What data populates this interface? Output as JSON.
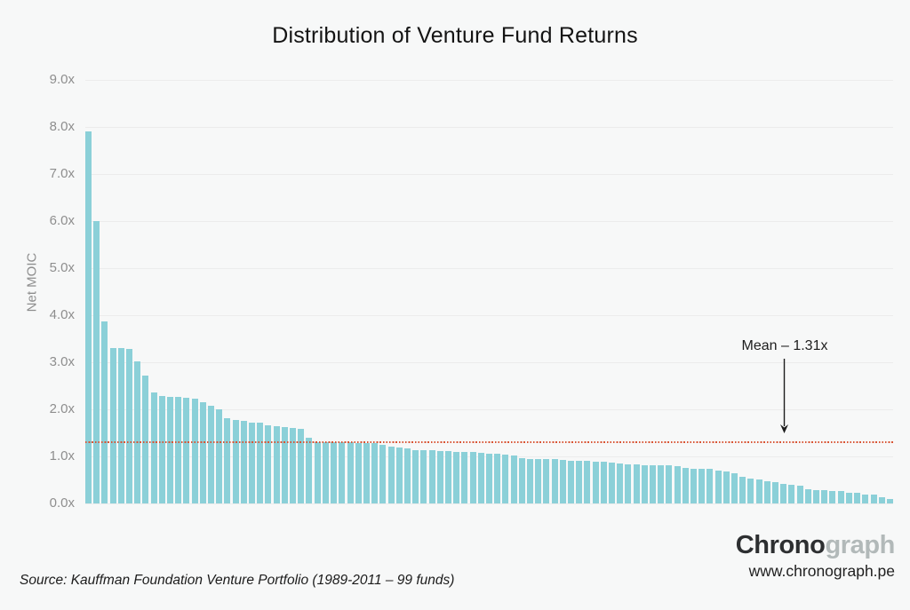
{
  "chart": {
    "title": "Distribution of Venture Fund Returns",
    "y_axis_title": "Net MOIC"
  },
  "chart_data": {
    "type": "bar",
    "title": "Distribution of Venture Fund Returns",
    "xlabel": "",
    "ylabel": "Net MOIC",
    "ylim": [
      0,
      9
    ],
    "grid": true,
    "y_ticks": [
      "9.0x",
      "8.0x",
      "7.0x",
      "6.0x",
      "5.0x",
      "4.0x",
      "3.0x",
      "2.0x",
      "1.0x",
      "0.0x"
    ],
    "y_tick_values": [
      9,
      8,
      7,
      6,
      5,
      4,
      3,
      2,
      1,
      0
    ],
    "bar_color": "#8bd0d8",
    "num_bars": 99,
    "values": [
      7.9,
      6.0,
      3.87,
      3.3,
      3.3,
      3.28,
      3.02,
      2.72,
      2.36,
      2.28,
      2.27,
      2.26,
      2.25,
      2.22,
      2.15,
      2.08,
      2.0,
      1.82,
      1.77,
      1.75,
      1.72,
      1.71,
      1.66,
      1.64,
      1.62,
      1.61,
      1.59,
      1.4,
      1.3,
      1.3,
      1.3,
      1.3,
      1.3,
      1.29,
      1.29,
      1.28,
      1.25,
      1.21,
      1.18,
      1.17,
      1.14,
      1.13,
      1.13,
      1.12,
      1.11,
      1.1,
      1.1,
      1.09,
      1.08,
      1.06,
      1.05,
      1.03,
      1.02,
      0.96,
      0.95,
      0.95,
      0.94,
      0.94,
      0.93,
      0.91,
      0.9,
      0.9,
      0.89,
      0.88,
      0.86,
      0.84,
      0.83,
      0.83,
      0.82,
      0.82,
      0.81,
      0.81,
      0.8,
      0.75,
      0.74,
      0.74,
      0.73,
      0.7,
      0.68,
      0.64,
      0.57,
      0.53,
      0.51,
      0.47,
      0.45,
      0.41,
      0.4,
      0.38,
      0.3,
      0.29,
      0.28,
      0.27,
      0.27,
      0.23,
      0.22,
      0.19,
      0.18,
      0.13,
      0.09
    ],
    "mean_line": {
      "label": "Mean – 1.31x",
      "value": 1.31,
      "color": "#d95535",
      "style": "dotted"
    },
    "legend": null
  },
  "footer": {
    "source": "Source: Kauffman Foundation Venture Portfolio (1989-2011 – 99 funds)",
    "brand_dark": "Chrono",
    "brand_light": "graph",
    "url": "www.chronograph.pe"
  },
  "colors": {
    "background": "#f7f8f8",
    "bar": "#8bd0d8",
    "gridline": "#ececec",
    "mean_line": "#d95535",
    "tick_text": "#8e8e8e",
    "title_text": "#141414"
  }
}
